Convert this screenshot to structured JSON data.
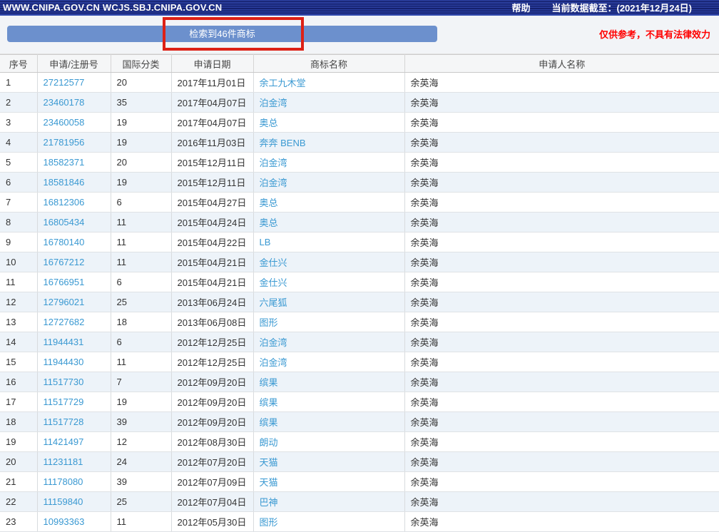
{
  "titlebar": {
    "site": "WWW.CNIPA.GOV.CN WCJS.SBJ.CNIPA.GOV.CN",
    "help_label": "帮助",
    "data_date": "当前数据截至：(2021年12月24日)"
  },
  "toolbar": {
    "result_button_label": "检索到46件商标",
    "result_count": 46,
    "disclaimer": "仅供参考，不具有法律效力"
  },
  "annotation": {
    "shape": "red-rectangle-highlight",
    "color": "#dd2116"
  },
  "colors": {
    "titlebar_navy": "#1b2b80",
    "button_blue": "#6c90cd",
    "link_blue": "#3a99d2",
    "disclaimer_red": "#ff0000",
    "alt_row_blue": "#edf3f9"
  },
  "table": {
    "headers": [
      "序号",
      "申请/注册号",
      "国际分类",
      "申请日期",
      "商标名称",
      "申请人名称"
    ],
    "rows": [
      [
        "1",
        "27212577",
        "20",
        "2017年11月01日",
        "余工九木堂",
        "余英海"
      ],
      [
        "2",
        "23460178",
        "35",
        "2017年04月07日",
        "泊金湾",
        "余英海"
      ],
      [
        "3",
        "23460058",
        "19",
        "2017年04月07日",
        "奥总",
        "余英海"
      ],
      [
        "4",
        "21781956",
        "19",
        "2016年11月03日",
        "奔奔 BENB",
        "余英海"
      ],
      [
        "5",
        "18582371",
        "20",
        "2015年12月11日",
        "泊金湾",
        "余英海"
      ],
      [
        "6",
        "18581846",
        "19",
        "2015年12月11日",
        "泊金湾",
        "余英海"
      ],
      [
        "7",
        "16812306",
        "6",
        "2015年04月27日",
        "奥总",
        "余英海"
      ],
      [
        "8",
        "16805434",
        "11",
        "2015年04月24日",
        "奥总",
        "余英海"
      ],
      [
        "9",
        "16780140",
        "11",
        "2015年04月22日",
        "LB",
        "余英海"
      ],
      [
        "10",
        "16767212",
        "11",
        "2015年04月21日",
        "金仕兴",
        "余英海"
      ],
      [
        "11",
        "16766951",
        "6",
        "2015年04月21日",
        "金仕兴",
        "余英海"
      ],
      [
        "12",
        "12796021",
        "25",
        "2013年06月24日",
        "六尾狐",
        "余英海"
      ],
      [
        "13",
        "12727682",
        "18",
        "2013年06月08日",
        "图形",
        "余英海"
      ],
      [
        "14",
        "11944431",
        "6",
        "2012年12月25日",
        "泊金湾",
        "余英海"
      ],
      [
        "15",
        "11944430",
        "11",
        "2012年12月25日",
        "泊金湾",
        "余英海"
      ],
      [
        "16",
        "11517730",
        "7",
        "2012年09月20日",
        "缤果",
        "余英海"
      ],
      [
        "17",
        "11517729",
        "19",
        "2012年09月20日",
        "缤果",
        "余英海"
      ],
      [
        "18",
        "11517728",
        "39",
        "2012年09月20日",
        "缤果",
        "余英海"
      ],
      [
        "19",
        "11421497",
        "12",
        "2012年08月30日",
        "朗动",
        "余英海"
      ],
      [
        "20",
        "11231181",
        "24",
        "2012年07月20日",
        "天猫",
        "余英海"
      ],
      [
        "21",
        "11178080",
        "39",
        "2012年07月09日",
        "天猫",
        "余英海"
      ],
      [
        "22",
        "11159840",
        "25",
        "2012年07月04日",
        "巴神",
        "余英海"
      ],
      [
        "23",
        "10993363",
        "11",
        "2012年05月30日",
        "图形",
        "余英海"
      ]
    ]
  }
}
